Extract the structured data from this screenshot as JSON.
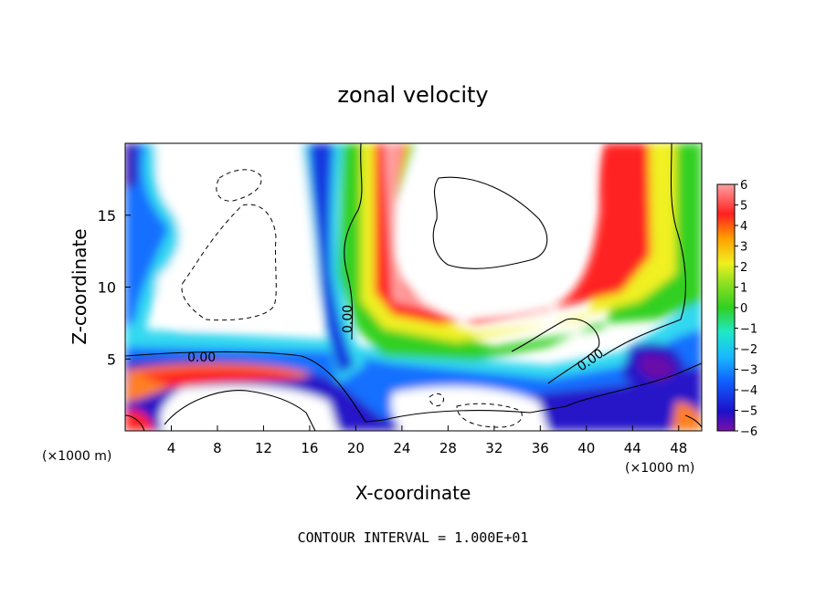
{
  "chart_data": {
    "type": "heatmap",
    "title": "zonal velocity",
    "xlabel": "X-coordinate",
    "ylabel": "Z-coordinate",
    "x_unit_label": "(×1000 m)",
    "x_unit_label_right": "(×1000 m)",
    "footer": "CONTOUR INTERVAL = 1.000E+01",
    "xlim": [
      0,
      50
    ],
    "ylim": [
      0,
      20
    ],
    "x_ticks": [
      "4",
      "8",
      "12",
      "16",
      "20",
      "24",
      "28",
      "32",
      "36",
      "40",
      "44",
      "48"
    ],
    "y_ticks": [
      "5",
      "10",
      "15"
    ],
    "colorbar": {
      "min": -6,
      "max": 6,
      "labels": [
        "6",
        "5",
        "4",
        "3",
        "2",
        "1",
        "0",
        "−1",
        "−2",
        "−3",
        "−4",
        "−5",
        "−6"
      ]
    },
    "contour_labels": [
      "0.00",
      "0.00",
      "0.00"
    ],
    "grid": false,
    "legend": "colorbar-right"
  }
}
